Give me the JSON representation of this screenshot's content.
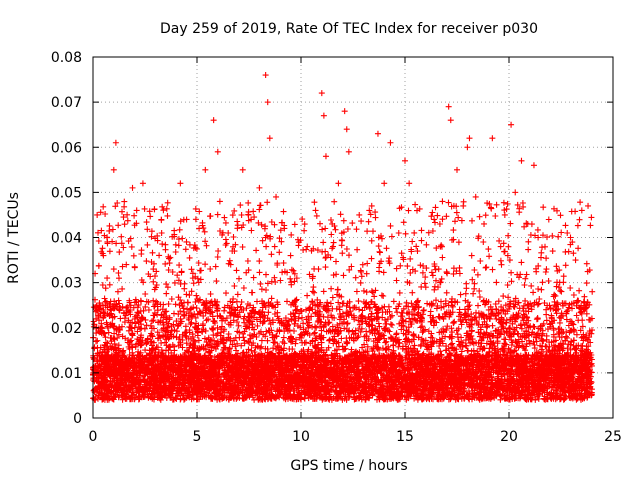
{
  "chart_data": {
    "type": "scatter",
    "title": "Day 259 of 2019, Rate Of TEC Index for receiver p030",
    "xlabel": "GPS time / hours",
    "ylabel": "ROTI / TECUs",
    "xlim": [
      0,
      25
    ],
    "ylim": [
      0,
      0.08
    ],
    "xticks": [
      0,
      5,
      10,
      15,
      20,
      25
    ],
    "yticks": [
      0,
      0.01,
      0.02,
      0.03,
      0.04,
      0.05,
      0.06,
      0.07,
      0.08
    ],
    "xtick_labels": [
      "0",
      "5",
      "10",
      "15",
      "20",
      "25"
    ],
    "ytick_labels": [
      "0",
      "0.01",
      "0.02",
      "0.03",
      "0.04",
      "0.05",
      "0.06",
      "0.07",
      "0.08"
    ],
    "grid": true,
    "marker": "+",
    "color": "#ff0000",
    "series": [
      {
        "name": "ROTI",
        "x": [
          0.1,
          0.2,
          0.3,
          0.5,
          1.0,
          1.1,
          1.2,
          1.6,
          1.9,
          2.1,
          2.4,
          2.9,
          3.3,
          3.6,
          4.2,
          4.5,
          4.8,
          5.1,
          5.4,
          5.8,
          6.0,
          6.1,
          6.5,
          6.8,
          7.2,
          7.6,
          8.0,
          8.3,
          8.4,
          8.5,
          8.8,
          9.2,
          9.5,
          9.8,
          10.3,
          10.7,
          11.0,
          11.1,
          11.2,
          11.5,
          11.8,
          12.1,
          12.2,
          12.3,
          12.8,
          13.4,
          13.7,
          14.0,
          14.3,
          14.7,
          15.0,
          15.2,
          15.6,
          16.0,
          16.4,
          16.8,
          17.1,
          17.2,
          17.5,
          17.8,
          18.0,
          18.1,
          18.4,
          18.8,
          19.2,
          19.6,
          19.8,
          20.1,
          20.3,
          20.6,
          20.9,
          21.2,
          21.4,
          21.8,
          22.1,
          22.4,
          22.8,
          23.2,
          23.5,
          23.8
        ],
        "y": [
          0.032,
          0.045,
          0.019,
          0.036,
          0.055,
          0.061,
          0.028,
          0.034,
          0.051,
          0.046,
          0.052,
          0.033,
          0.041,
          0.029,
          0.052,
          0.044,
          0.031,
          0.042,
          0.055,
          0.066,
          0.059,
          0.048,
          0.041,
          0.037,
          0.055,
          0.044,
          0.051,
          0.076,
          0.07,
          0.062,
          0.049,
          0.042,
          0.036,
          0.031,
          0.038,
          0.046,
          0.072,
          0.067,
          0.058,
          0.043,
          0.052,
          0.068,
          0.064,
          0.059,
          0.045,
          0.047,
          0.063,
          0.052,
          0.061,
          0.041,
          0.057,
          0.052,
          0.037,
          0.029,
          0.044,
          0.048,
          0.069,
          0.066,
          0.055,
          0.047,
          0.06,
          0.062,
          0.049,
          0.043,
          0.062,
          0.038,
          0.045,
          0.065,
          0.05,
          0.057,
          0.043,
          0.056,
          0.04,
          0.033,
          0.037,
          0.029,
          0.041,
          0.035,
          0.046,
          0.047
        ]
      }
    ]
  }
}
